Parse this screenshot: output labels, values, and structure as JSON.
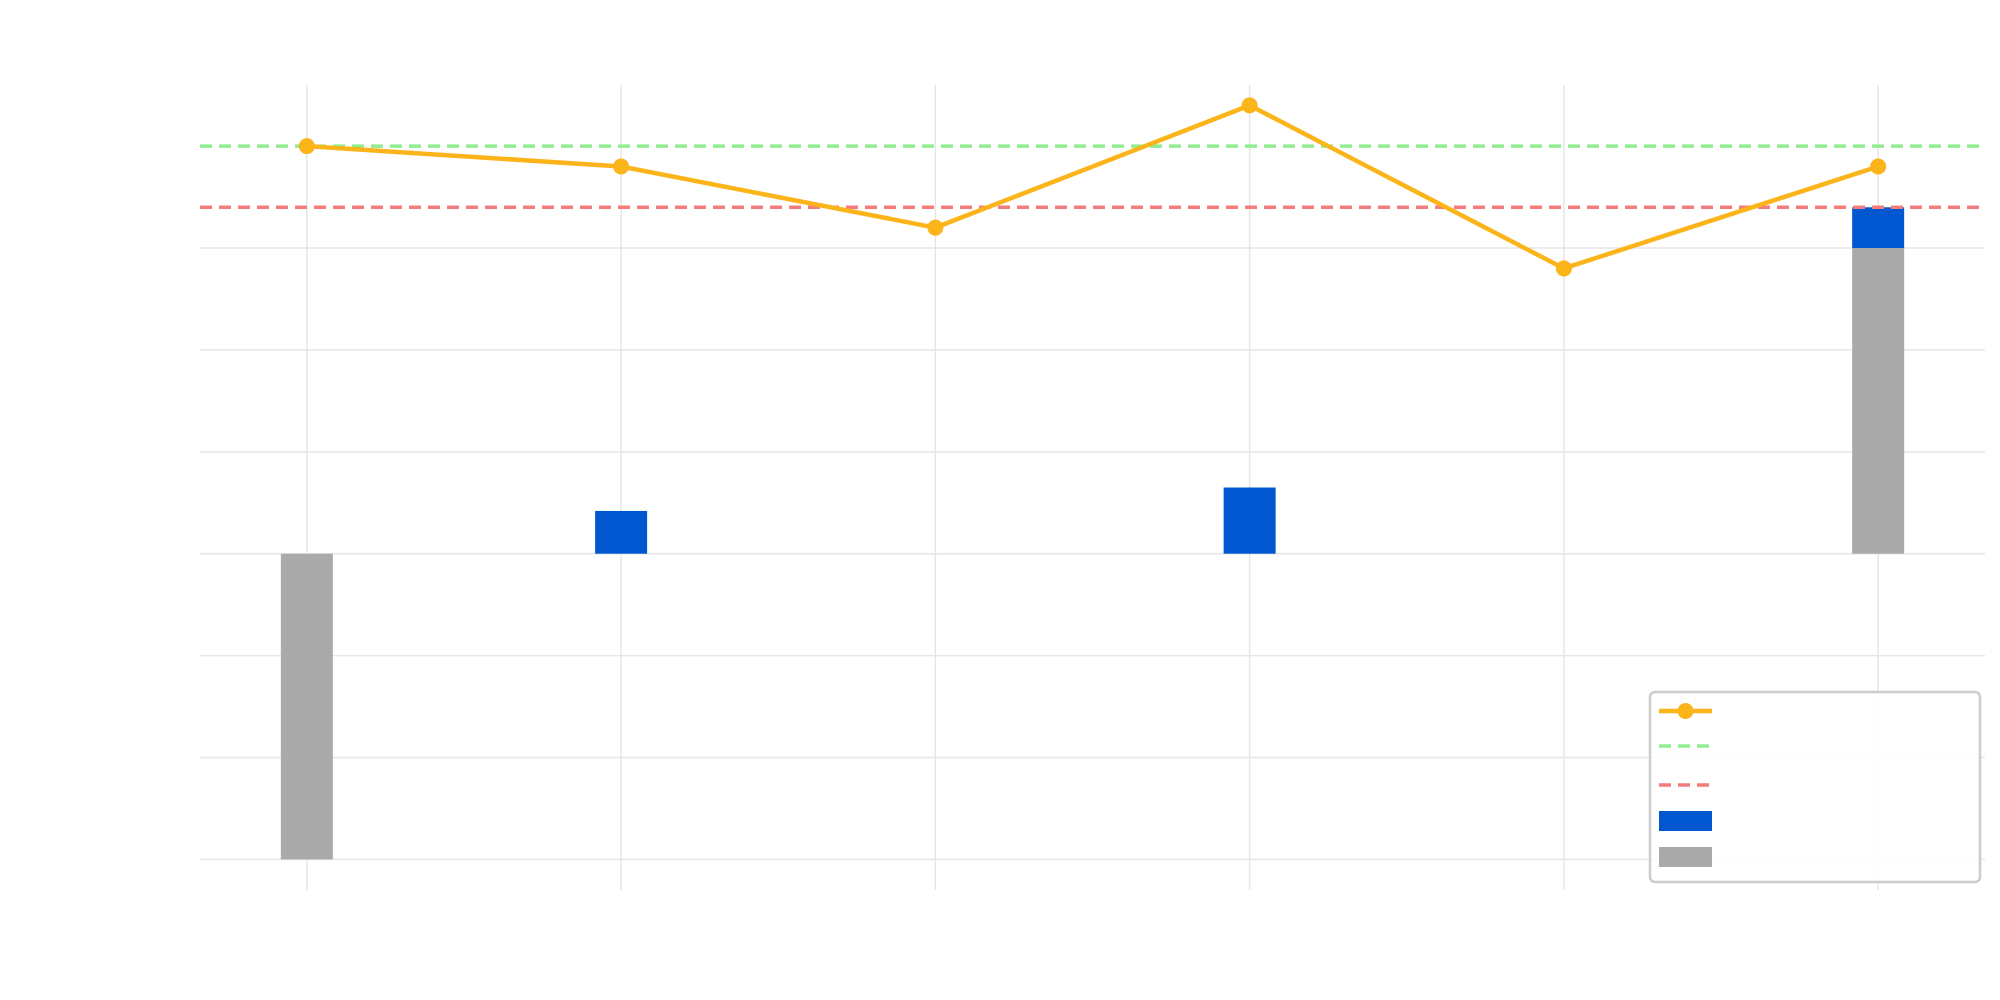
{
  "chart_data": {
    "type": "bar",
    "title": "",
    "xlabel": "",
    "ylabel": "",
    "x": [
      1,
      2,
      3,
      4,
      5,
      6
    ],
    "ylim": [
      -3.3,
      4.6
    ],
    "xlim": [
      0.66,
      6.34
    ],
    "grid": true,
    "legend_position": "bottom-right",
    "series": [
      {
        "key": "line",
        "type": "line",
        "color": "#fbb41a",
        "values": [
          4.0,
          3.8,
          3.2,
          4.4,
          2.8,
          3.8
        ]
      },
      {
        "key": "upper",
        "type": "hline",
        "color": "#90ee90",
        "style": "dashed",
        "value": 4.0
      },
      {
        "key": "lower",
        "type": "hline",
        "color": "#f47c7c",
        "style": "dashed",
        "value": 3.4
      },
      {
        "key": "blue",
        "type": "bar",
        "color": "#0057d0",
        "base": [
          null,
          0,
          null,
          0,
          null,
          3.0
        ],
        "values": [
          null,
          0.42,
          null,
          0.65,
          null,
          0.4
        ]
      },
      {
        "key": "gray",
        "type": "bar",
        "color": "#aaaaaa",
        "base": [
          0,
          null,
          null,
          null,
          null,
          0
        ],
        "values": [
          -3.0,
          null,
          null,
          null,
          null,
          3.0
        ]
      }
    ],
    "legend": [
      {
        "key": "line",
        "label": ""
      },
      {
        "key": "upper",
        "label": ""
      },
      {
        "key": "lower",
        "label": ""
      },
      {
        "key": "blue",
        "label": ""
      },
      {
        "key": "gray",
        "label": ""
      }
    ]
  }
}
